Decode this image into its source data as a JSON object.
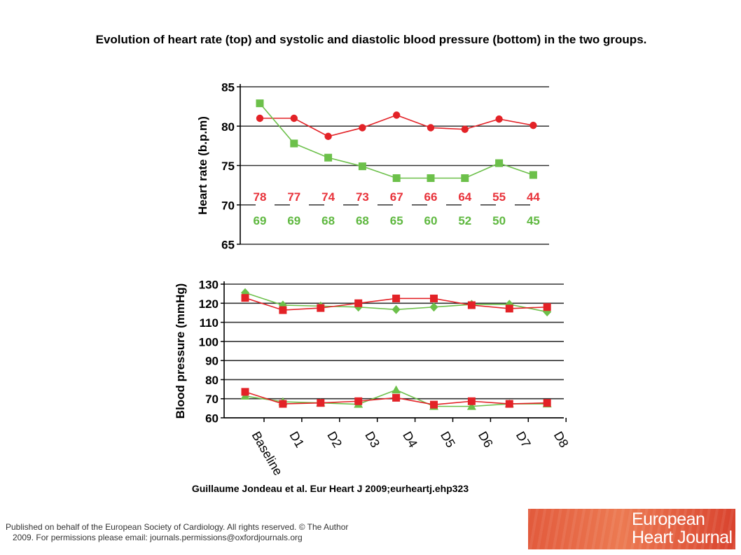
{
  "title": "Evolution of heart rate (top) and systolic and diastolic blood pressure (bottom) in the two groups.",
  "citation": "Guillaume  Jondeau et al. Eur Heart J 2009;eurheartj.ehp323",
  "footer": {
    "line1": "Published on behalf of the European Society of Cardiology. All rights reserved. © The Author",
    "line2": "2009. For permissions please email: journals.permissions@oxfordjournals.org"
  },
  "logo": {
    "line1": "European",
    "line2": "Heart Journal"
  },
  "colors": {
    "red": "#e32227",
    "green": "#6cc04a",
    "n_red": "#e8323a",
    "n_green": "#5fb840"
  },
  "chart_data": [
    {
      "type": "line",
      "ylabel": "Heart rate (b.p.m)",
      "ylim": [
        65,
        85
      ],
      "yticks": [
        65,
        70,
        75,
        80,
        85
      ],
      "grid": true,
      "dashed_gridline_at": 70,
      "x": [
        "Baseline",
        "D1",
        "D2",
        "D3",
        "D4",
        "D5",
        "D6",
        "D7",
        "D8"
      ],
      "series": [
        {
          "color": "red",
          "marker": "circle",
          "values": [
            81.0,
            81.0,
            78.7,
            79.8,
            81.4,
            79.8,
            79.6,
            80.9,
            80.1
          ]
        },
        {
          "color": "green",
          "marker": "square",
          "values": [
            82.9,
            77.8,
            76.0,
            74.9,
            73.4,
            73.4,
            73.4,
            75.3,
            73.8
          ]
        }
      ],
      "counts_red": [
        "78",
        "77",
        "74",
        "73",
        "67",
        "66",
        "64",
        "55",
        "44"
      ],
      "counts_green": [
        "69",
        "69",
        "68",
        "68",
        "65",
        "60",
        "52",
        "50",
        "45"
      ]
    },
    {
      "type": "line",
      "ylabel": "Blood pressure (mmHg)",
      "ylim": [
        60,
        130
      ],
      "yticks": [
        60,
        70,
        80,
        90,
        100,
        110,
        120,
        130
      ],
      "grid": true,
      "x": [
        "Baseline",
        "D1",
        "D2",
        "D3",
        "D4",
        "D5",
        "D6",
        "D7",
        "D8"
      ],
      "series": [
        {
          "color": "green",
          "marker": "diamond",
          "values": [
            125.5,
            119.0,
            118.5,
            118.0,
            116.7,
            118.0,
            119.4,
            119.4,
            115.5
          ]
        },
        {
          "color": "red",
          "marker": "square",
          "values": [
            122.8,
            116.4,
            117.5,
            120.0,
            122.5,
            122.5,
            119.0,
            117.2,
            118.0
          ]
        },
        {
          "color": "green",
          "marker": "triangle",
          "values": [
            71.4,
            68.4,
            67.8,
            67.1,
            74.6,
            66.0,
            66.0,
            67.3,
            67.3
          ]
        },
        {
          "color": "red",
          "marker": "square",
          "values": [
            73.6,
            67.3,
            67.8,
            68.7,
            70.5,
            66.9,
            68.7,
            67.3,
            67.8
          ]
        }
      ]
    }
  ]
}
